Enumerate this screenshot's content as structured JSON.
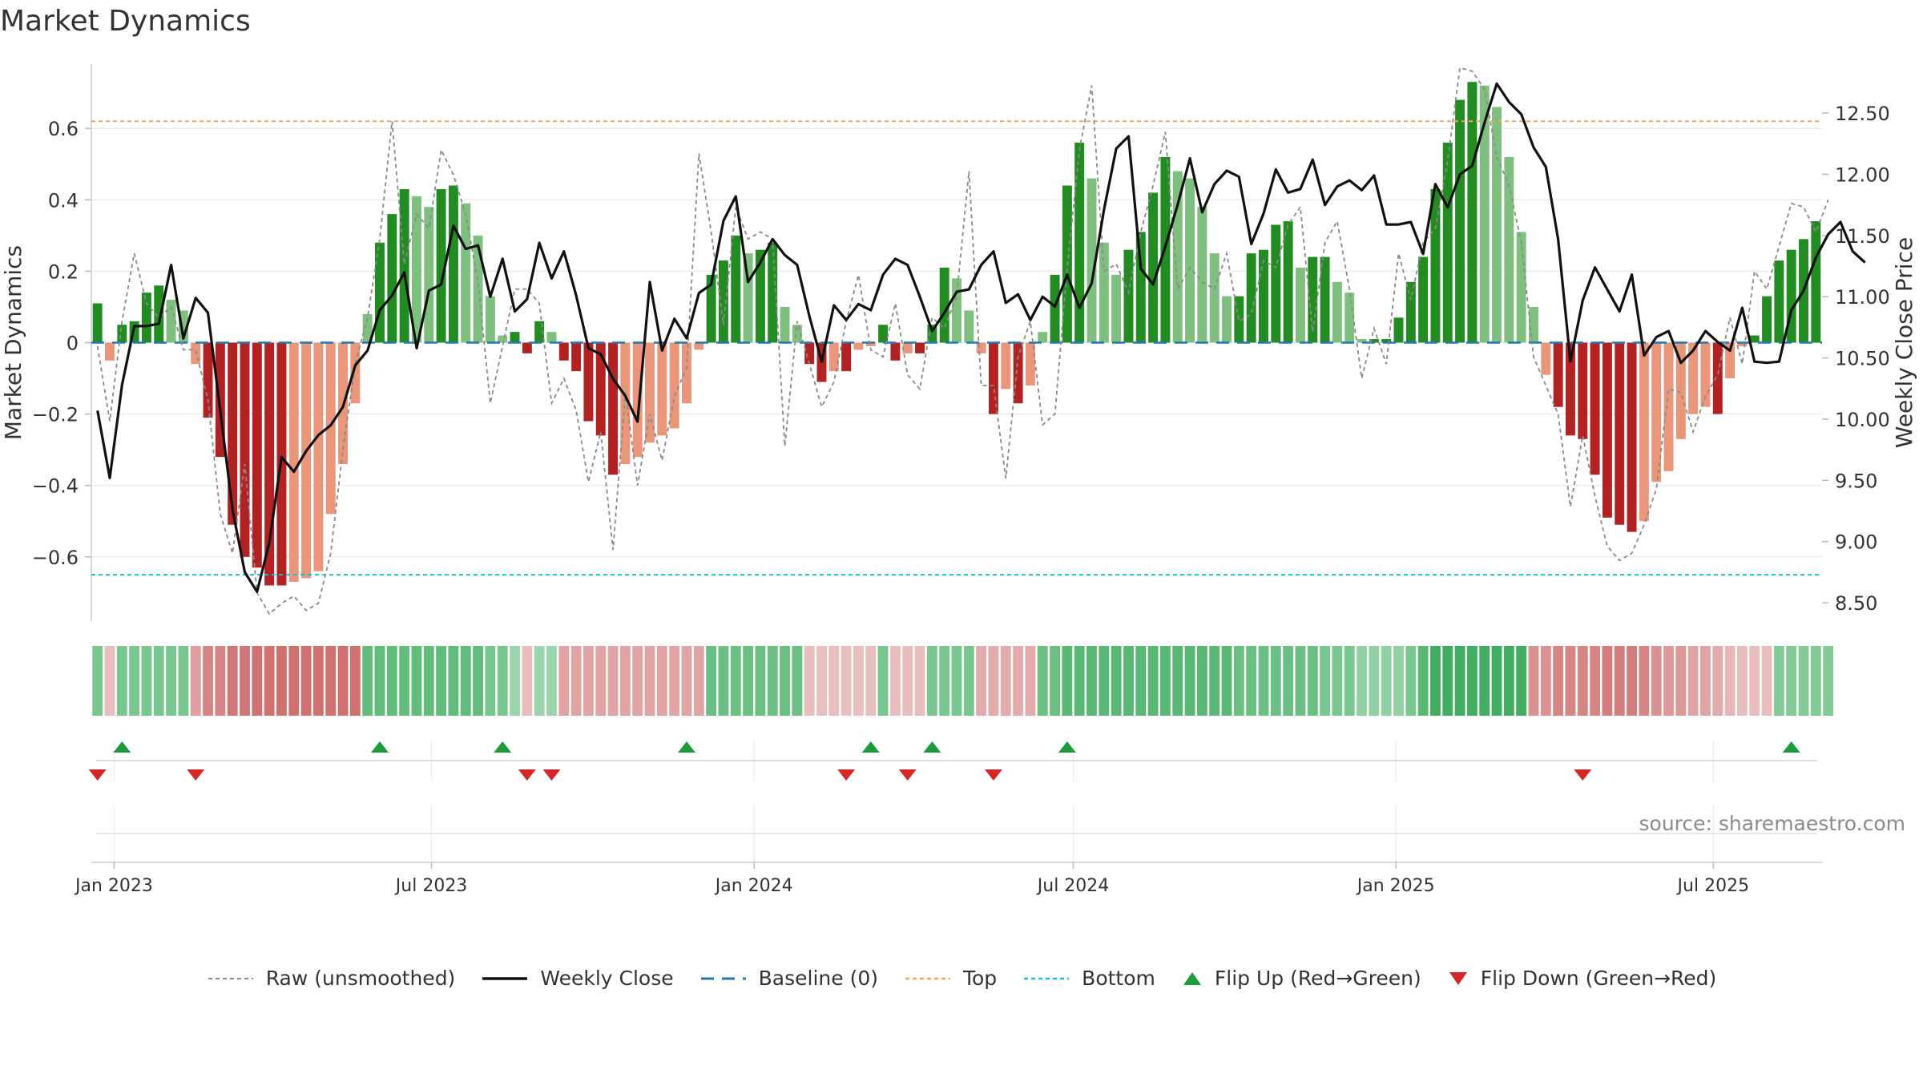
{
  "title": "Market Dynamics",
  "source": "source: sharemaestro.com",
  "colors": {
    "pos_strong": "#228b22",
    "pos_weak": "#7fbf7f",
    "neg_strong": "#b22222",
    "neg_weak": "#e9967a",
    "close": "#111111",
    "raw": "#8a8a8a",
    "baseline": "#1f77b4",
    "top": "#f4a460",
    "bottom": "#17becf",
    "flip_up": "#1e9a3c",
    "flip_down": "#d62728"
  },
  "chart_data": {
    "type": "bar",
    "ylabel_left": "Market Dynamics",
    "ylabel_right": "Weekly Close Price",
    "ylim_left": [
      -0.78,
      0.78
    ],
    "ylim_right": [
      8.35,
      12.9
    ],
    "yticks_left": [
      {
        "v": 0.6,
        "label": "0.6"
      },
      {
        "v": 0.4,
        "label": "0.4"
      },
      {
        "v": 0.2,
        "label": "0.2"
      },
      {
        "v": 0,
        "label": "0"
      },
      {
        "v": -0.2,
        "label": "−0.2"
      },
      {
        "v": -0.4,
        "label": "−0.4"
      },
      {
        "v": -0.6,
        "label": "−0.6"
      }
    ],
    "yticks_right": [
      "12.50",
      "12.00",
      "11.50",
      "11.00",
      "10.50",
      "10.00",
      "9.50",
      "9.00",
      "8.50"
    ],
    "x_start": "2022-12-19",
    "x_end": "2025-09-01",
    "xticks": [
      {
        "date": "2023-01-01",
        "label": "Jan 2023"
      },
      {
        "date": "2023-07-01",
        "label": "Jul 2023"
      },
      {
        "date": "2024-01-01",
        "label": "Jan 2024"
      },
      {
        "date": "2024-07-01",
        "label": "Jul 2024"
      },
      {
        "date": "2025-01-01",
        "label": "Jan 2025"
      },
      {
        "date": "2025-07-01",
        "label": "Jul 2025"
      }
    ],
    "top_level": 0.62,
    "bottom_level": -0.65,
    "baseline": 0,
    "bar_start": "2022-12-19",
    "bar_values": [
      0.11,
      -0.05,
      0.05,
      0.06,
      0.14,
      0.16,
      0.12,
      0.09,
      -0.06,
      -0.21,
      -0.32,
      -0.51,
      -0.6,
      -0.63,
      -0.68,
      -0.68,
      -0.67,
      -0.66,
      -0.64,
      -0.48,
      -0.34,
      -0.17,
      0.08,
      0.28,
      0.36,
      0.43,
      0.41,
      0.38,
      0.43,
      0.44,
      0.39,
      0.3,
      0.13,
      0.02,
      0.03,
      -0.03,
      0.06,
      0.03,
      -0.05,
      -0.08,
      -0.22,
      -0.26,
      -0.37,
      -0.34,
      -0.32,
      -0.28,
      -0.26,
      -0.24,
      -0.17,
      -0.02,
      0.19,
      0.23,
      0.3,
      0.25,
      0.26,
      0.28,
      0.1,
      0.05,
      -0.06,
      -0.11,
      -0.08,
      -0.08,
      -0.02,
      -0.01,
      0.05,
      -0.05,
      -0.03,
      -0.03,
      0.05,
      0.21,
      0.18,
      0.09,
      -0.03,
      -0.2,
      -0.13,
      -0.17,
      -0.12,
      0.03,
      0.19,
      0.44,
      0.56,
      0.46,
      0.28,
      0.19,
      0.26,
      0.31,
      0.42,
      0.52,
      0.48,
      0.46,
      0.38,
      0.25,
      0.13,
      0.13,
      0.25,
      0.26,
      0.33,
      0.34,
      0.21,
      0.24,
      0.24,
      0.17,
      0.14,
      0.01,
      0.01,
      0.01,
      0.07,
      0.17,
      0.24,
      0.43,
      0.56,
      0.68,
      0.73,
      0.72,
      0.66,
      0.52,
      0.31,
      0.1,
      -0.09,
      -0.18,
      -0.26,
      -0.27,
      -0.37,
      -0.49,
      -0.51,
      -0.53,
      -0.5,
      -0.39,
      -0.36,
      -0.27,
      -0.2,
      -0.18,
      -0.2,
      -0.1,
      -0.01,
      0.02,
      0.13,
      0.23,
      0.26,
      0.29,
      0.34
    ],
    "close_prices": [
      10.07,
      9.52,
      10.28,
      10.76,
      10.76,
      10.78,
      11.26,
      10.66,
      10.99,
      10.87,
      10.07,
      9.26,
      8.75,
      8.59,
      8.99,
      9.69,
      9.57,
      9.74,
      9.87,
      9.95,
      10.1,
      10.44,
      10.56,
      10.89,
      11.01,
      11.2,
      10.58,
      11.05,
      11.1,
      11.58,
      11.39,
      11.42,
      11.0,
      11.31,
      10.88,
      10.98,
      11.44,
      11.15,
      11.37,
      11.01,
      10.58,
      10.53,
      10.33,
      10.19,
      9.98,
      11.12,
      10.56,
      10.82,
      10.66,
      11.03,
      11.1,
      11.62,
      11.82,
      11.12,
      11.28,
      11.47,
      11.34,
      11.26,
      10.84,
      10.47,
      10.93,
      10.81,
      10.94,
      10.89,
      11.18,
      11.31,
      11.26,
      11.0,
      10.72,
      10.87,
      11.04,
      11.06,
      11.26,
      11.37,
      10.95,
      11.02,
      10.81,
      11.0,
      10.92,
      11.18,
      10.91,
      11.11,
      11.71,
      12.21,
      12.31,
      11.23,
      11.1,
      11.41,
      11.75,
      12.13,
      11.69,
      11.92,
      12.03,
      11.98,
      11.43,
      11.68,
      12.04,
      11.85,
      11.88,
      12.12,
      11.75,
      11.9,
      11.95,
      11.87,
      11.99,
      11.59,
      11.59,
      11.61,
      11.35,
      11.92,
      11.73,
      12.0,
      12.07,
      12.42,
      12.74,
      12.59,
      12.49,
      12.22,
      12.06,
      11.47,
      10.47,
      10.97,
      11.24,
      11.06,
      10.88,
      11.18,
      10.52,
      10.67,
      10.72,
      10.46,
      10.56,
      10.72,
      10.63,
      10.56,
      10.91,
      10.47,
      10.46,
      10.47,
      10.89,
      11.05,
      11.32,
      11.51,
      11.61,
      11.37,
      11.28
    ],
    "raw_values": [
      -0.01,
      -0.22,
      0.06,
      0.25,
      0.11,
      0.07,
      0.1,
      -0.02,
      -0.02,
      -0.16,
      -0.48,
      -0.59,
      -0.34,
      -0.7,
      -0.76,
      -0.73,
      -0.71,
      -0.75,
      -0.73,
      -0.59,
      -0.3,
      -0.06,
      0.07,
      0.29,
      0.62,
      0.22,
      0.36,
      0.32,
      0.54,
      0.47,
      0.36,
      0.17,
      -0.17,
      -0.01,
      0.15,
      0.15,
      0.11,
      -0.17,
      -0.1,
      -0.19,
      -0.39,
      -0.25,
      -0.58,
      -0.14,
      -0.4,
      -0.2,
      -0.33,
      -0.15,
      -0.07,
      0.53,
      0.31,
      0.05,
      0.38,
      0.29,
      0.31,
      0.29,
      -0.29,
      0.06,
      -0.06,
      -0.18,
      -0.11,
      0.06,
      0.19,
      -0.02,
      -0.04,
      0.11,
      -0.09,
      -0.13,
      0.07,
      0.04,
      0.13,
      0.48,
      -0.12,
      -0.12,
      -0.38,
      -0.04,
      0.06,
      -0.23,
      -0.2,
      0.21,
      0.54,
      0.72,
      0.2,
      0.22,
      0.14,
      0.31,
      0.44,
      0.59,
      0.15,
      0.21,
      0.17,
      0.15,
      0.25,
      0.06,
      0.08,
      0.23,
      0.21,
      0.33,
      0.38,
      0.03,
      0.28,
      0.34,
      0.15,
      -0.1,
      0.04,
      -0.06,
      0.25,
      0.12,
      0.28,
      0.32,
      0.51,
      0.77,
      0.76,
      0.71,
      0.52,
      0.44,
      0.28,
      -0.04,
      -0.12,
      -0.2,
      -0.46,
      -0.26,
      -0.43,
      -0.57,
      -0.61,
      -0.59,
      -0.51,
      -0.41,
      -0.13,
      -0.14,
      -0.25,
      -0.15,
      -0.09,
      0.07,
      -0.06,
      0.2,
      0.15,
      0.27,
      0.39,
      0.38,
      0.31,
      0.4
    ],
    "regime_strength": [
      0.6,
      -0.3,
      0.6,
      0.6,
      0.6,
      0.6,
      0.6,
      0.6,
      -0.55,
      -0.75,
      -0.75,
      -0.85,
      -0.85,
      -0.9,
      -0.9,
      -0.9,
      -0.9,
      -0.9,
      -0.9,
      -0.9,
      -0.9,
      -0.9,
      0.75,
      0.75,
      0.75,
      0.75,
      0.75,
      0.75,
      0.75,
      0.75,
      0.75,
      0.75,
      0.6,
      0.6,
      0.4,
      -0.3,
      0.4,
      0.4,
      -0.5,
      -0.5,
      -0.5,
      -0.5,
      -0.5,
      -0.5,
      -0.5,
      -0.5,
      -0.5,
      -0.5,
      -0.5,
      -0.5,
      0.7,
      0.7,
      0.7,
      0.7,
      0.7,
      0.7,
      0.7,
      0.7,
      -0.3,
      -0.3,
      -0.3,
      -0.3,
      -0.3,
      -0.3,
      0.6,
      -0.3,
      -0.3,
      -0.3,
      0.6,
      0.6,
      0.6,
      0.6,
      -0.45,
      -0.45,
      -0.45,
      -0.45,
      -0.45,
      0.7,
      0.7,
      0.8,
      0.8,
      0.8,
      0.8,
      0.8,
      0.8,
      0.8,
      0.8,
      0.8,
      0.8,
      0.8,
      0.8,
      0.8,
      0.8,
      0.7,
      0.7,
      0.7,
      0.7,
      0.7,
      0.7,
      0.7,
      0.6,
      0.6,
      0.6,
      0.45,
      0.45,
      0.45,
      0.45,
      0.6,
      0.8,
      0.95,
      0.95,
      0.95,
      0.95,
      0.95,
      0.95,
      0.95,
      0.95,
      -0.65,
      -0.65,
      -0.75,
      -0.75,
      -0.75,
      -0.75,
      -0.8,
      -0.8,
      -0.8,
      -0.75,
      -0.65,
      -0.6,
      -0.6,
      -0.5,
      -0.5,
      -0.45,
      -0.35,
      -0.3,
      -0.3,
      -0.3,
      0.55,
      0.55,
      0.55,
      0.55,
      0.55
    ],
    "flip_up_weeks": [
      2,
      23,
      33,
      48,
      63,
      68,
      79,
      138
    ],
    "flip_down_weeks": [
      0,
      8,
      35,
      37,
      61,
      66,
      73,
      121
    ],
    "legend": [
      {
        "key": "raw",
        "label": "Raw (unsmoothed)"
      },
      {
        "key": "close",
        "label": "Weekly Close"
      },
      {
        "key": "baseline",
        "label": "Baseline (0)"
      },
      {
        "key": "top",
        "label": "Top"
      },
      {
        "key": "bottom",
        "label": "Bottom"
      },
      {
        "key": "flip_up",
        "label": "Flip Up (Red→Green)"
      },
      {
        "key": "flip_down",
        "label": "Flip Down (Green→Red)"
      }
    ]
  }
}
